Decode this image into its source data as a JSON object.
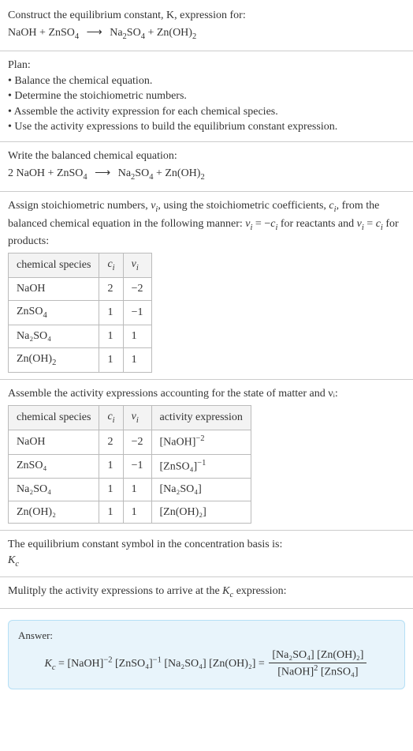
{
  "intro": {
    "line1": "Construct the equilibrium constant, K, expression for:",
    "eq_lhs": "NaOH + ZnSO",
    "eq_lhs_sub": "4",
    "eq_rhs1": "Na",
    "eq_rhs1_sub1": "2",
    "eq_rhs1_mid": "SO",
    "eq_rhs1_sub2": "4",
    "eq_rhs2": " + Zn(OH)",
    "eq_rhs2_sub": "2"
  },
  "plan": {
    "heading": "Plan:",
    "b1": "• Balance the chemical equation.",
    "b2": "• Determine the stoichiometric numbers.",
    "b3": "• Assemble the activity expression for each chemical species.",
    "b4": "• Use the activity expressions to build the equilibrium constant expression."
  },
  "balanced": {
    "heading": "Write the balanced chemical equation:",
    "coef": "2 NaOH + ZnSO",
    "sub1": "4",
    "rhs1": "Na",
    "rhs1_sub1": "2",
    "rhs1_mid": "SO",
    "rhs1_sub2": "4",
    "rhs2": " + Zn(OH)",
    "rhs2_sub": "2"
  },
  "assign": {
    "text_a": "Assign stoichiometric numbers, ",
    "nu": "ν",
    "sub_i": "i",
    "text_b": ", using the stoichiometric coefficients, ",
    "c": "c",
    "text_c": ", from the balanced chemical equation in the following manner: ",
    "eq1": " = −",
    "text_d": " for reactants and ",
    "eq2": " = ",
    "text_e": " for products:",
    "table": {
      "h1": "chemical species",
      "h2": "cᵢ",
      "h3": "νᵢ",
      "rows": [
        {
          "sp": "NaOH",
          "sub": "",
          "c": "2",
          "v": "−2"
        },
        {
          "sp": "ZnSO",
          "sub": "4",
          "c": "1",
          "v": "−1"
        },
        {
          "sp": "Na₂SO",
          "sub": "4",
          "pre": "",
          "c": "1",
          "v": "1"
        },
        {
          "sp": "Zn(OH)",
          "sub": "2",
          "c": "1",
          "v": "1"
        }
      ],
      "na2so4_full": "Na₂SO₄"
    }
  },
  "assemble": {
    "heading": "Assemble the activity expressions accounting for the state of matter and νᵢ:",
    "table": {
      "h1": "chemical species",
      "h2": "cᵢ",
      "h3": "νᵢ",
      "h4": "activity expression",
      "rows": [
        {
          "sp": "NaOH",
          "c": "2",
          "v": "−2",
          "act_base": "[NaOH]",
          "act_exp": "−2"
        },
        {
          "sp": "ZnSO₄",
          "c": "1",
          "v": "−1",
          "act_base": "[ZnSO₄]",
          "act_exp": "−1"
        },
        {
          "sp": "Na₂SO₄",
          "c": "1",
          "v": "1",
          "act_base": "[Na₂SO₄]",
          "act_exp": ""
        },
        {
          "sp": "Zn(OH)₂",
          "c": "1",
          "v": "1",
          "act_base": "[Zn(OH)₂]",
          "act_exp": ""
        }
      ]
    }
  },
  "eqconst": {
    "line": "The equilibrium constant symbol in the concentration basis is:",
    "symbol": "K",
    "symbol_sub": "c"
  },
  "multiply": {
    "line": "Mulitply the activity expressions to arrive at the ",
    "k": "K",
    "ksub": "c",
    "line2": " expression:"
  },
  "answer": {
    "label": "Answer:",
    "kc": "K",
    "kc_sub": "c",
    "eq": " = ",
    "t1": "[NaOH]",
    "e1": "−2",
    "t2": " [ZnSO₄]",
    "e2": "−1",
    "t3": " [Na₂SO₄] [Zn(OH)₂] = ",
    "num": "[Na₂SO₄] [Zn(OH)₂]",
    "den_a": "[NaOH]",
    "den_a_exp": "2",
    "den_b": " [ZnSO₄]"
  },
  "colors": {
    "border": "#cccccc",
    "answer_bg": "#e8f4fb",
    "answer_border": "#b5dff5",
    "text": "#333333"
  }
}
